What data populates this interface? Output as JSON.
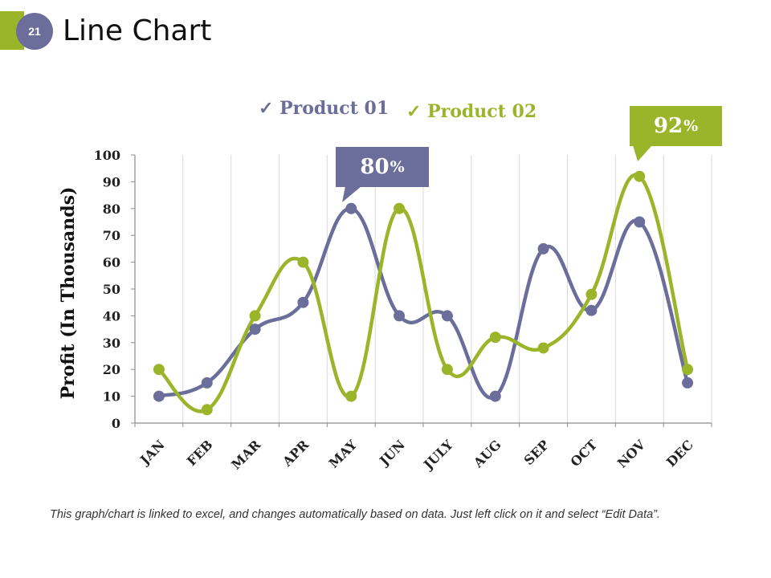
{
  "slide": {
    "number": "21",
    "title": "Line Chart",
    "footer": "This graph/chart is linked to excel, and changes automatically based on data. Just left click on it and select “Edit Data”."
  },
  "legend": {
    "check": "✓",
    "series1": "Product 01",
    "series2": "Product 02"
  },
  "callouts": {
    "c1_value": "80",
    "c1_unit": "%",
    "c2_value": "92",
    "c2_unit": "%"
  },
  "colors": {
    "series1": "#6b6e9a",
    "series2": "#9bb52b",
    "grid": "#d9d9d9",
    "axis": "#8c8c8c"
  },
  "chart_data": {
    "type": "line",
    "smooth": true,
    "title": "",
    "xlabel": "",
    "ylabel": "Profit (In Thousands)",
    "ylim": [
      0,
      100
    ],
    "yticks": [
      0,
      10,
      20,
      30,
      40,
      50,
      60,
      70,
      80,
      90,
      100
    ],
    "categories": [
      "JAN",
      "FEB",
      "MAR",
      "APR",
      "MAY",
      "JUN",
      "JULY",
      "AUG",
      "SEP",
      "OCT",
      "NOV",
      "DEC"
    ],
    "series": [
      {
        "name": "Product 01",
        "values": [
          10,
          15,
          35,
          45,
          80,
          40,
          40,
          10,
          65,
          42,
          75,
          15
        ]
      },
      {
        "name": "Product 02",
        "values": [
          20,
          5,
          40,
          60,
          10,
          80,
          20,
          32,
          28,
          48,
          92,
          20
        ]
      }
    ],
    "grid": {
      "vertical": true,
      "horizontal": false
    },
    "annotations": [
      {
        "series": "Product 01",
        "category": "MAY",
        "text": "80%"
      },
      {
        "series": "Product 02",
        "category": "NOV",
        "text": "92%"
      }
    ]
  }
}
